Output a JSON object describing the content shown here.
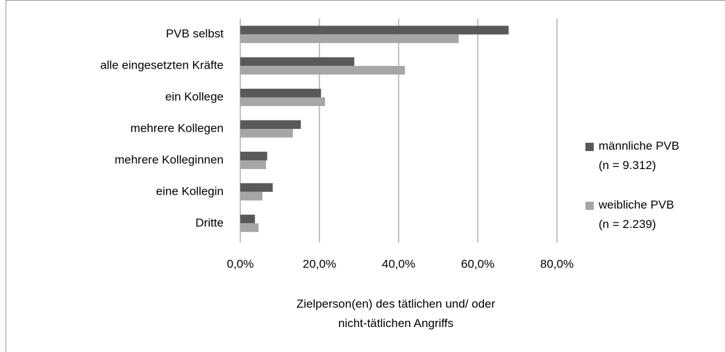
{
  "chart_data": {
    "type": "barh",
    "categories": [
      "PVB selbst",
      "alle eingesetzten Kräfte",
      "ein Kollege",
      "mehrere Kollegen",
      "mehrere Kolleginnen",
      "eine Kollegin",
      "Dritte"
    ],
    "series": [
      {
        "name": "männliche PVB (n = 9.312)",
        "color": "#595959",
        "values": [
          67.8,
          28.8,
          20.4,
          15.3,
          6.8,
          8.2,
          3.7
        ]
      },
      {
        "name": "weibliche PVB (n = 2.239)",
        "color": "#a6a6a6",
        "values": [
          55.2,
          41.6,
          21.4,
          13.3,
          6.5,
          5.6,
          4.6
        ]
      }
    ],
    "xlabel": "Zielperson(en) des tätlichen und/ oder nicht-tätlichen Angriffs",
    "xlim": [
      0,
      80
    ],
    "xticks": [
      {
        "value": 0,
        "label": "0,0%"
      },
      {
        "value": 20,
        "label": "20,0%"
      },
      {
        "value": 40,
        "label": "40,0%"
      },
      {
        "value": 60,
        "label": "60,0%"
      },
      {
        "value": 80,
        "label": "80,0%"
      }
    ],
    "grid": true,
    "legend": "right"
  }
}
